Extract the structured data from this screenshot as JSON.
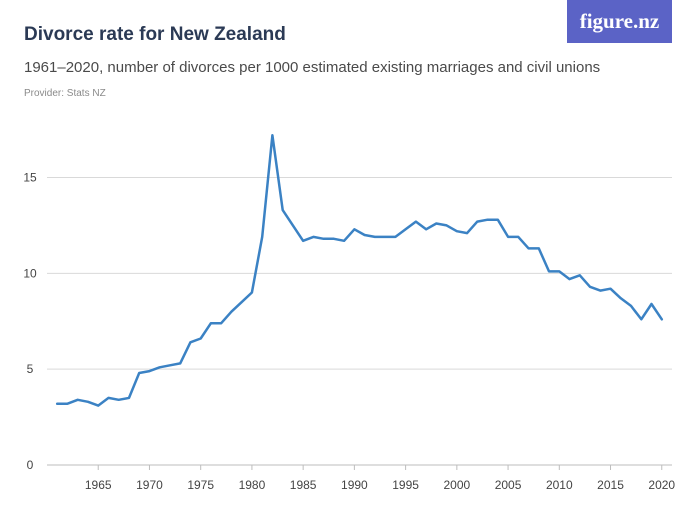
{
  "header": {
    "title": "Divorce rate for New Zealand",
    "subtitle": "1961–2020, number of divorces per 1000 estimated existing marriages and civil unions",
    "provider": "Provider: Stats NZ",
    "logo_text": "figure.nz"
  },
  "colors": {
    "line": "#3b82c4",
    "grid": "#d9d9d9",
    "logo_bg": "#5b63c6",
    "title": "#2b3a55"
  },
  "chart_data": {
    "type": "line",
    "title": "Divorce rate for New Zealand",
    "xlabel": "",
    "ylabel": "",
    "xlim": [
      1960,
      2021
    ],
    "ylim": [
      0,
      18
    ],
    "grid": true,
    "y_ticks": [
      0,
      5,
      10,
      15
    ],
    "x_ticks": [
      1965,
      1970,
      1975,
      1980,
      1985,
      1990,
      1995,
      2000,
      2005,
      2010,
      2015,
      2020
    ],
    "series": [
      {
        "x": [
          1961,
          1962,
          1963,
          1964,
          1965,
          1966,
          1967,
          1968,
          1969,
          1970,
          1971,
          1972,
          1973,
          1974,
          1975,
          1976,
          1977,
          1978,
          1979,
          1980,
          1981,
          1982,
          1983,
          1984,
          1985,
          1986,
          1987,
          1988,
          1989,
          1990,
          1991,
          1992,
          1993,
          1994,
          1995,
          1996,
          1997,
          1998,
          1999,
          2000,
          2001,
          2002,
          2003,
          2004,
          2005,
          2006,
          2007,
          2008,
          2009,
          2010,
          2011,
          2012,
          2013,
          2014,
          2015,
          2016,
          2017,
          2018,
          2019,
          2020
        ],
        "values": [
          3.2,
          3.2,
          3.4,
          3.3,
          3.1,
          3.5,
          3.4,
          3.5,
          4.8,
          4.9,
          5.1,
          5.2,
          5.3,
          6.4,
          6.6,
          7.4,
          7.4,
          8.0,
          8.5,
          9.0,
          11.9,
          17.2,
          13.3,
          12.5,
          11.7,
          11.9,
          11.8,
          11.8,
          11.7,
          12.3,
          12.0,
          11.9,
          11.9,
          11.9,
          12.3,
          12.7,
          12.3,
          12.6,
          12.5,
          12.2,
          12.1,
          12.7,
          12.8,
          12.8,
          11.9,
          11.9,
          11.3,
          11.3,
          10.1,
          10.1,
          9.7,
          9.9,
          9.3,
          9.1,
          9.2,
          8.7,
          8.3,
          7.6,
          8.4,
          7.6
        ]
      }
    ]
  }
}
